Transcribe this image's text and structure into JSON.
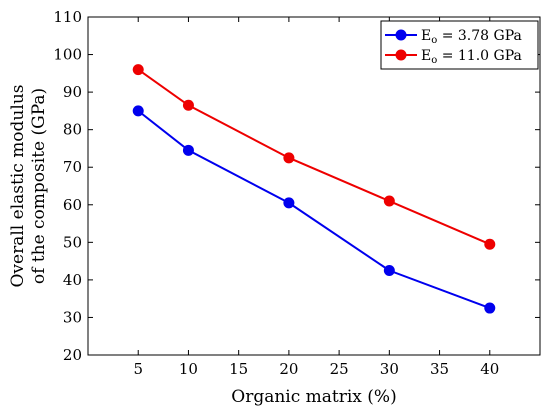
{
  "chart_data": {
    "type": "line",
    "x": [
      5,
      10,
      20,
      30,
      40
    ],
    "xticks": [
      "5",
      "10",
      "15",
      "20",
      "25",
      "30",
      "35",
      "40"
    ],
    "yticks": [
      "20",
      "30",
      "40",
      "50",
      "60",
      "70",
      "80",
      "90",
      "100",
      "110"
    ],
    "xlim": [
      0,
      45
    ],
    "ylim": [
      20,
      110
    ],
    "xlabel": "Organic matrix (%)",
    "ylabel_line1": "Overall elastic modulus",
    "ylabel_line2": "of the composite (GPa)",
    "legend_position": "top-right",
    "grid": false,
    "series": [
      {
        "name": "Eo = 3.78 GPa",
        "label_main": "E",
        "label_sub": "o",
        "label_rest": " = 3.78 GPa",
        "color": "#0000ee",
        "values": [
          85.0,
          74.5,
          60.5,
          42.5,
          32.5
        ]
      },
      {
        "name": "Eo = 11.0 GPa",
        "label_main": "E",
        "label_sub": "o",
        "label_rest": " = 11.0 GPa",
        "color": "#ee0000",
        "values": [
          96.0,
          86.5,
          72.5,
          61.0,
          49.5
        ]
      }
    ]
  }
}
